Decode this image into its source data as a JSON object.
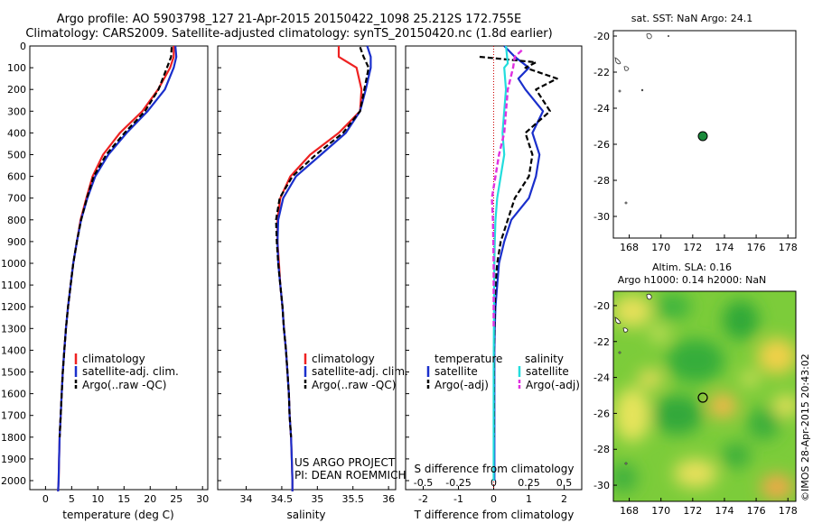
{
  "header": {
    "line1": "Argo profile: AO 5903798_127 21-Apr-2015 20150422_1098 25.212S 172.755E",
    "line2": "Climatology: CARS2009. Satellite-adjusted climatology: synTS_20150420.nc (1.8d earlier)"
  },
  "depth_ticks": [
    "0",
    "100",
    "200",
    "300",
    "400",
    "500",
    "600",
    "700",
    "800",
    "900",
    "1000",
    "1100",
    "1200",
    "1300",
    "1400",
    "1500",
    "1600",
    "1700",
    "1800",
    "1900",
    "2000"
  ],
  "colors": {
    "climatology": "#ee2222",
    "satellite": "#1a2fcc",
    "argo": "#000000",
    "sal_satellite": "#22dddd",
    "sal_argo": "#e030e0"
  },
  "temperature_panel": {
    "xlabel": "temperature (deg C)",
    "xticks": [
      "0",
      "5",
      "10",
      "15",
      "20",
      "25",
      "30"
    ],
    "legend": [
      "climatology",
      "satellite-adj. clim.",
      "Argo(..raw -QC)"
    ]
  },
  "salinity_panel": {
    "xlabel": "salinity",
    "xticks": [
      "34",
      "34.5",
      "35",
      "35.5",
      "36"
    ],
    "legend": [
      "climatology",
      "satellite-adj. clim.",
      "Argo(..raw -QC)"
    ],
    "note1": "US ARGO PROJECT",
    "note2": "PI: DEAN ROEMMICH"
  },
  "difference_panel": {
    "xlabel_t": "T difference from climatology",
    "xlabel_s": "S difference from climatology",
    "t_ticks": [
      "-2",
      "-1",
      "0",
      "1",
      "2"
    ],
    "s_ticks": [
      "-0.5",
      "-0.25",
      "0",
      "0.25",
      "0.5"
    ],
    "legend_t_title": "temperature",
    "legend_s_title": "salinity",
    "legend_t": [
      "satellite",
      "Argo(-adj)"
    ],
    "legend_s": [
      "satellite",
      "Argo(-adj)"
    ]
  },
  "sst_map": {
    "title": "sat. SST: NaN  Argo: 24.1",
    "xticks": [
      "168",
      "170",
      "172",
      "174",
      "176",
      "178"
    ],
    "yticks": [
      "-20",
      "-22",
      "-24",
      "-26",
      "-28",
      "-30"
    ]
  },
  "sla_map": {
    "title1": "Altim. SLA: 0.16",
    "title2": "Argo h1000: 0.14  h2000: NaN",
    "xticks": [
      "168",
      "170",
      "172",
      "174",
      "176",
      "178"
    ],
    "yticks": [
      "-20",
      "-22",
      "-24",
      "-26",
      "-28",
      "-30"
    ]
  },
  "credit": "©IMOS 28-Apr-2015 20:43:02",
  "chart_data": [
    {
      "type": "line",
      "title": "",
      "xlabel": "temperature (deg C)",
      "ylabel": "",
      "xlim": [
        -3,
        31
      ],
      "ylim": [
        2050,
        0
      ],
      "series": [
        {
          "name": "climatology",
          "x": [
            24.5,
            24.5,
            23.8,
            21.5,
            18.5,
            14.2,
            11.0,
            9.0,
            7.8,
            6.7,
            6.0,
            5.3,
            4.8,
            4.3,
            3.9,
            3.6,
            3.3,
            3.1,
            2.9,
            2.7,
            2.6,
            2.5,
            2.4,
            2.4
          ],
          "y": [
            0,
            50,
            100,
            200,
            300,
            400,
            500,
            600,
            700,
            800,
            900,
            1000,
            1100,
            1200,
            1300,
            1400,
            1500,
            1600,
            1700,
            1800,
            1900,
            2000,
            2050,
            2050
          ]
        },
        {
          "name": "satellite-adj. clim.",
          "x": [
            24.8,
            25.0,
            24.5,
            22.8,
            19.5,
            15.5,
            12.0,
            9.5,
            8.0,
            6.8,
            6.0,
            5.3,
            4.8,
            4.3,
            3.9,
            3.6,
            3.3,
            3.1,
            2.9,
            2.7,
            2.6,
            2.5,
            2.4
          ],
          "y": [
            0,
            50,
            100,
            200,
            300,
            400,
            500,
            600,
            700,
            800,
            900,
            1000,
            1100,
            1200,
            1300,
            1400,
            1500,
            1600,
            1700,
            1800,
            1900,
            2000,
            2050
          ]
        },
        {
          "name": "Argo(..raw -QC)",
          "x": [
            24.1,
            24.0,
            23.2,
            21.6,
            19.0,
            15.1,
            11.6,
            9.2,
            7.9,
            6.8,
            6.0,
            5.3,
            4.8,
            4.3,
            3.9,
            3.6,
            3.3,
            3.1,
            2.9,
            2.7
          ],
          "y": [
            5,
            50,
            100,
            200,
            300,
            400,
            500,
            600,
            700,
            800,
            900,
            1000,
            1100,
            1200,
            1300,
            1400,
            1500,
            1600,
            1700,
            1800
          ]
        }
      ]
    },
    {
      "type": "line",
      "title": "",
      "xlabel": "salinity",
      "ylabel": "",
      "xlim": [
        33.6,
        36.1
      ],
      "ylim": [
        2050,
        0
      ],
      "series": [
        {
          "name": "climatology",
          "x": [
            35.3,
            35.3,
            35.55,
            35.62,
            35.6,
            35.3,
            34.9,
            34.62,
            34.48,
            34.44,
            34.44,
            34.46,
            34.48,
            34.51,
            34.53,
            34.56,
            34.58,
            34.6,
            34.61,
            34.63,
            34.64,
            34.65,
            34.65
          ],
          "y": [
            0,
            50,
            100,
            200,
            300,
            400,
            500,
            600,
            700,
            800,
            900,
            1000,
            1100,
            1200,
            1300,
            1400,
            1500,
            1600,
            1700,
            1800,
            1900,
            2000,
            2050
          ]
        },
        {
          "name": "satellite-adj. clim.",
          "x": [
            35.7,
            35.75,
            35.75,
            35.68,
            35.6,
            35.4,
            35.05,
            34.7,
            34.52,
            34.45,
            34.44,
            34.45,
            34.48,
            34.51,
            34.53,
            34.56,
            34.58,
            34.6,
            34.61,
            34.63,
            34.64,
            34.65,
            34.65
          ],
          "y": [
            0,
            50,
            100,
            200,
            300,
            400,
            500,
            600,
            700,
            800,
            900,
            1000,
            1100,
            1200,
            1300,
            1400,
            1500,
            1600,
            1700,
            1800,
            1900,
            2000,
            2050
          ]
        },
        {
          "name": "Argo(..raw -QC)",
          "x": [
            35.6,
            35.65,
            35.72,
            35.66,
            35.6,
            35.36,
            34.98,
            34.65,
            34.47,
            34.42,
            34.43,
            34.45,
            34.48,
            34.51,
            34.53,
            34.56,
            34.58,
            34.6,
            34.61,
            34.63
          ],
          "y": [
            5,
            50,
            100,
            200,
            300,
            400,
            500,
            600,
            700,
            800,
            900,
            1000,
            1100,
            1200,
            1300,
            1400,
            1500,
            1600,
            1700,
            1800
          ]
        }
      ]
    },
    {
      "type": "line",
      "title": "",
      "xlabel": "T difference from climatology",
      "ylabel": "",
      "xlim": [
        -2.5,
        2.5
      ],
      "ylim": [
        2050,
        0
      ],
      "series": [
        {
          "name": "temperature satellite",
          "x": [
            0.3,
            0.6,
            1.0,
            0.7,
            0.9,
            1.4,
            1.1,
            1.3,
            1.2,
            1.0,
            0.5,
            0.3,
            0.15,
            0.1,
            0.05,
            0.03,
            0.02,
            0.02,
            0.02,
            0.02,
            0.02,
            0.02
          ],
          "y": [
            0,
            50,
            100,
            150,
            200,
            300,
            400,
            500,
            600,
            700,
            800,
            900,
            1000,
            1100,
            1200,
            1300,
            1400,
            1500,
            1600,
            1700,
            1800,
            2000
          ]
        },
        {
          "name": "temperature Argo(-adj)",
          "x": [
            -0.4,
            1.2,
            0.9,
            1.8,
            1.2,
            1.6,
            0.9,
            1.1,
            1.0,
            0.6,
            0.4,
            0.2,
            0.1,
            0.05,
            0.03,
            0.02,
            0.01,
            0.01
          ],
          "y": [
            50,
            75,
            100,
            150,
            200,
            300,
            400,
            500,
            600,
            700,
            800,
            900,
            1000,
            1100,
            1200,
            1300,
            1400,
            1800
          ]
        },
        {
          "name": "salinity satellite",
          "x": [
            0.35,
            0.4,
            0.3,
            0.35,
            0.3,
            0.25,
            0.3,
            0.2,
            0.1,
            0.05,
            0.03,
            0.02,
            0.01,
            0.0,
            0.0
          ],
          "y": [
            0,
            80,
            100,
            200,
            300,
            400,
            500,
            600,
            700,
            800,
            900,
            1000,
            1200,
            1500,
            2000
          ]
        },
        {
          "name": "salinity Argo(-adj)",
          "x": [
            0.8,
            0.6,
            0.55,
            0.4,
            0.3,
            0.15,
            0.05,
            -0.05,
            -0.02,
            0.0,
            0.0
          ],
          "y": [
            20,
            50,
            100,
            200,
            400,
            500,
            600,
            700,
            800,
            1000,
            1300
          ]
        }
      ]
    }
  ]
}
